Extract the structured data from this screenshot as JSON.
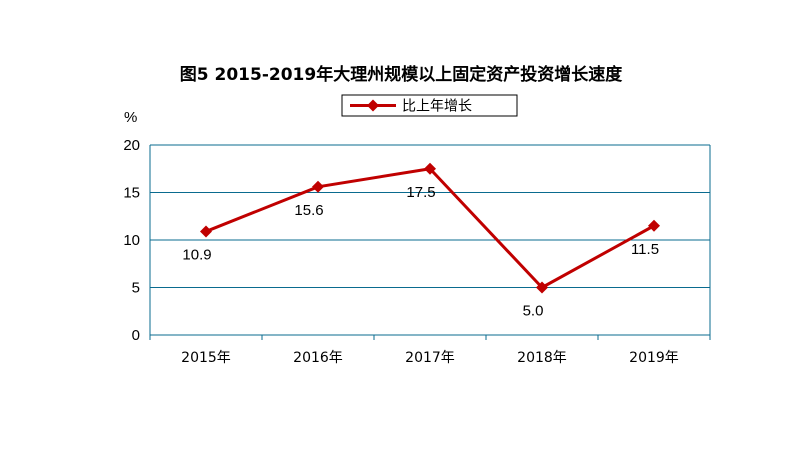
{
  "chart_data": {
    "type": "line",
    "title": "图5 2015-2019年大理州规模以上固定资产投资增长速度",
    "yunit": "%",
    "categories": [
      "2015年",
      "2016年",
      "2017年",
      "2018年",
      "2019年"
    ],
    "series": [
      {
        "name": "比上年增长",
        "values": [
          10.9,
          15.6,
          17.5,
          5.0,
          11.5
        ],
        "labels": [
          "10.9",
          "15.6",
          "17.5",
          "5.0",
          "11.5"
        ],
        "color": "#c00000",
        "marker": "diamond"
      }
    ],
    "ylim": [
      0,
      20
    ],
    "yticks": [
      0,
      5,
      10,
      15,
      20
    ],
    "grid": true,
    "gridColor": "#0a6b8f",
    "legend": "top-center"
  }
}
